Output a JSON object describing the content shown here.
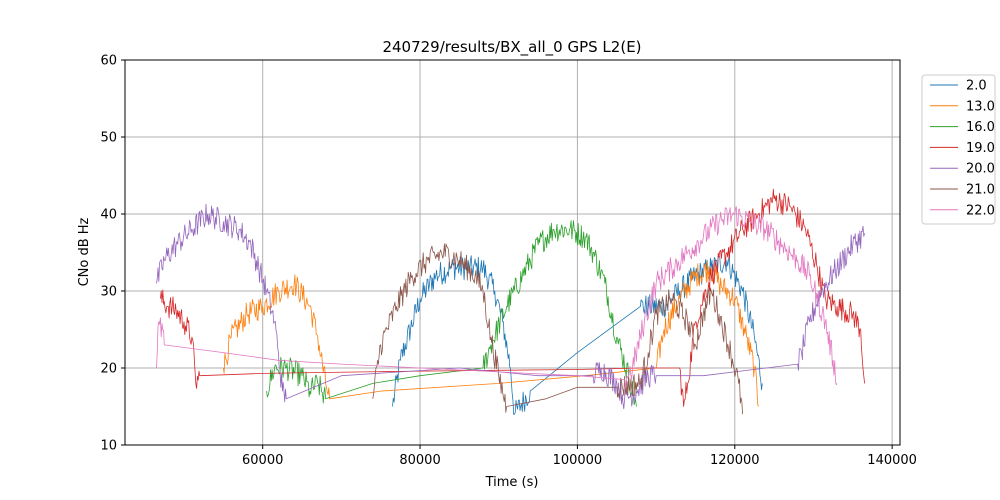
{
  "chart_data": {
    "type": "line",
    "title": "240729/results/BX_all_0 GPS L2(E)",
    "xlabel": "Time (s)",
    "ylabel": "CNo dB Hz",
    "xlim": [
      42500,
      141000
    ],
    "ylim": [
      10,
      60
    ],
    "xticks": [
      60000,
      80000,
      100000,
      120000,
      140000
    ],
    "yticks": [
      10,
      20,
      30,
      40,
      50,
      60
    ],
    "grid": true,
    "legend_position": "outside-top-right",
    "series": [
      {
        "name": "2.0",
        "color": "#1f77b4",
        "points": [
          [
            76500,
            15
          ],
          [
            77500,
            21
          ],
          [
            80000,
            29
          ],
          [
            82000,
            32
          ],
          [
            84000,
            33
          ],
          [
            86000,
            33
          ],
          [
            88000,
            33
          ],
          [
            89500,
            30
          ],
          [
            90500,
            26
          ],
          [
            91500,
            20
          ],
          [
            92000,
            14
          ],
          [
            94000,
            17
          ],
          [
            100000,
            22
          ],
          [
            108000,
            28
          ],
          [
            111000,
            28
          ],
          [
            113000,
            30
          ],
          [
            115000,
            32
          ],
          [
            117000,
            33
          ],
          [
            119000,
            34
          ],
          [
            121000,
            30
          ],
          [
            122500,
            24
          ],
          [
            123500,
            18
          ]
        ]
      },
      {
        "name": "13.0",
        "color": "#ff7f0e",
        "points": [
          [
            55000,
            20
          ],
          [
            56000,
            24
          ],
          [
            58000,
            27
          ],
          [
            60000,
            28
          ],
          [
            62000,
            30
          ],
          [
            64000,
            31
          ],
          [
            66000,
            28
          ],
          [
            67000,
            24
          ],
          [
            68000,
            18
          ],
          [
            68500,
            16
          ],
          [
            75000,
            17
          ],
          [
            90000,
            18
          ],
          [
            101000,
            19
          ],
          [
            110000,
            20
          ],
          [
            111000,
            25
          ],
          [
            113000,
            29
          ],
          [
            115000,
            32
          ],
          [
            117000,
            33
          ],
          [
            118000,
            31
          ],
          [
            120000,
            29
          ],
          [
            121500,
            24
          ],
          [
            122500,
            20
          ],
          [
            123000,
            15
          ]
        ]
      },
      {
        "name": "16.0",
        "color": "#2ca02c",
        "points": [
          [
            60500,
            17
          ],
          [
            61500,
            20
          ],
          [
            63000,
            20
          ],
          [
            65000,
            19
          ],
          [
            66000,
            17
          ],
          [
            67000,
            18
          ],
          [
            68000,
            16
          ],
          [
            74000,
            18
          ],
          [
            80000,
            19
          ],
          [
            88000,
            20
          ],
          [
            89000,
            23
          ],
          [
            91000,
            28
          ],
          [
            93000,
            32
          ],
          [
            95000,
            36
          ],
          [
            97000,
            38
          ],
          [
            99000,
            38
          ],
          [
            101000,
            37
          ],
          [
            102000,
            35
          ],
          [
            103500,
            31
          ],
          [
            105000,
            24
          ],
          [
            106500,
            19
          ],
          [
            107500,
            15
          ]
        ]
      },
      {
        "name": "19.0",
        "color": "#d62728",
        "points": [
          [
            47000,
            29
          ],
          [
            48000,
            28
          ],
          [
            49000,
            27.5
          ],
          [
            50000,
            26
          ],
          [
            51000,
            24
          ],
          [
            51500,
            18
          ],
          [
            52000,
            19
          ],
          [
            60000,
            19.3
          ],
          [
            80000,
            19.6
          ],
          [
            100000,
            19.8
          ],
          [
            108000,
            20
          ],
          [
            113000,
            20
          ],
          [
            113500,
            15
          ],
          [
            114000,
            18
          ],
          [
            115000,
            26
          ],
          [
            117000,
            32
          ],
          [
            119000,
            35
          ],
          [
            121000,
            38
          ],
          [
            123000,
            40
          ],
          [
            125000,
            42
          ],
          [
            127000,
            41
          ],
          [
            129000,
            38
          ],
          [
            130500,
            33
          ],
          [
            131500,
            29
          ],
          [
            133000,
            28
          ],
          [
            135000,
            27
          ],
          [
            136000,
            25
          ],
          [
            136500,
            18
          ]
        ]
      },
      {
        "name": "20.0",
        "color": "#9467bd",
        "points": [
          [
            46500,
            31
          ],
          [
            47500,
            34
          ],
          [
            49000,
            36
          ],
          [
            51000,
            38
          ],
          [
            53000,
            40
          ],
          [
            55000,
            39
          ],
          [
            57000,
            38
          ],
          [
            58500,
            36
          ],
          [
            59500,
            33
          ],
          [
            60500,
            30
          ],
          [
            61500,
            26
          ],
          [
            62000,
            22
          ],
          [
            62500,
            17
          ],
          [
            63000,
            16
          ],
          [
            70000,
            19
          ],
          [
            85000,
            20
          ],
          [
            95000,
            19
          ],
          [
            102000,
            19
          ],
          [
            103000,
            20
          ],
          [
            105000,
            18
          ],
          [
            106000,
            16
          ],
          [
            107500,
            17
          ],
          [
            109000,
            19
          ],
          [
            110000,
            19
          ],
          [
            116000,
            19
          ],
          [
            124000,
            20
          ],
          [
            128000,
            20.5
          ],
          [
            128500,
            22
          ],
          [
            129500,
            26
          ],
          [
            131000,
            30
          ],
          [
            133000,
            33
          ],
          [
            135000,
            36
          ],
          [
            136500,
            37.5
          ]
        ]
      },
      {
        "name": "21.0",
        "color": "#8c564b",
        "points": [
          [
            74000,
            16
          ],
          [
            75000,
            23
          ],
          [
            77000,
            28
          ],
          [
            79000,
            32
          ],
          [
            81000,
            34
          ],
          [
            83000,
            35
          ],
          [
            85000,
            34
          ],
          [
            87000,
            32
          ],
          [
            88000,
            30
          ],
          [
            89000,
            24
          ],
          [
            90000,
            19
          ],
          [
            91000,
            15
          ],
          [
            96000,
            16
          ],
          [
            100000,
            17.5
          ],
          [
            105000,
            17.5
          ],
          [
            108000,
            18
          ],
          [
            109000,
            22
          ],
          [
            110000,
            27
          ],
          [
            112000,
            29
          ],
          [
            114000,
            26
          ],
          [
            115000,
            23
          ],
          [
            116000,
            27
          ],
          [
            117000,
            30
          ],
          [
            118000,
            27
          ],
          [
            119500,
            22
          ],
          [
            120500,
            18
          ],
          [
            121000,
            14
          ]
        ]
      },
      {
        "name": "22.0",
        "color": "#e377c2",
        "points": [
          [
            46500,
            20
          ],
          [
            46800,
            26
          ],
          [
            47500,
            23
          ],
          [
            55000,
            22
          ],
          [
            62000,
            21
          ],
          [
            70000,
            20.5
          ],
          [
            80000,
            20
          ],
          [
            90000,
            19.5
          ],
          [
            100000,
            19
          ],
          [
            106000,
            18.5
          ],
          [
            107000,
            20
          ],
          [
            108500,
            26
          ],
          [
            110000,
            31
          ],
          [
            112000,
            33
          ],
          [
            114000,
            35
          ],
          [
            116000,
            37
          ],
          [
            118000,
            39
          ],
          [
            120000,
            40
          ],
          [
            122000,
            39
          ],
          [
            124000,
            38
          ],
          [
            126000,
            36
          ],
          [
            128000,
            34
          ],
          [
            129500,
            32
          ],
          [
            130500,
            29
          ],
          [
            131500,
            26
          ],
          [
            132500,
            21
          ],
          [
            133000,
            18
          ]
        ]
      }
    ]
  }
}
